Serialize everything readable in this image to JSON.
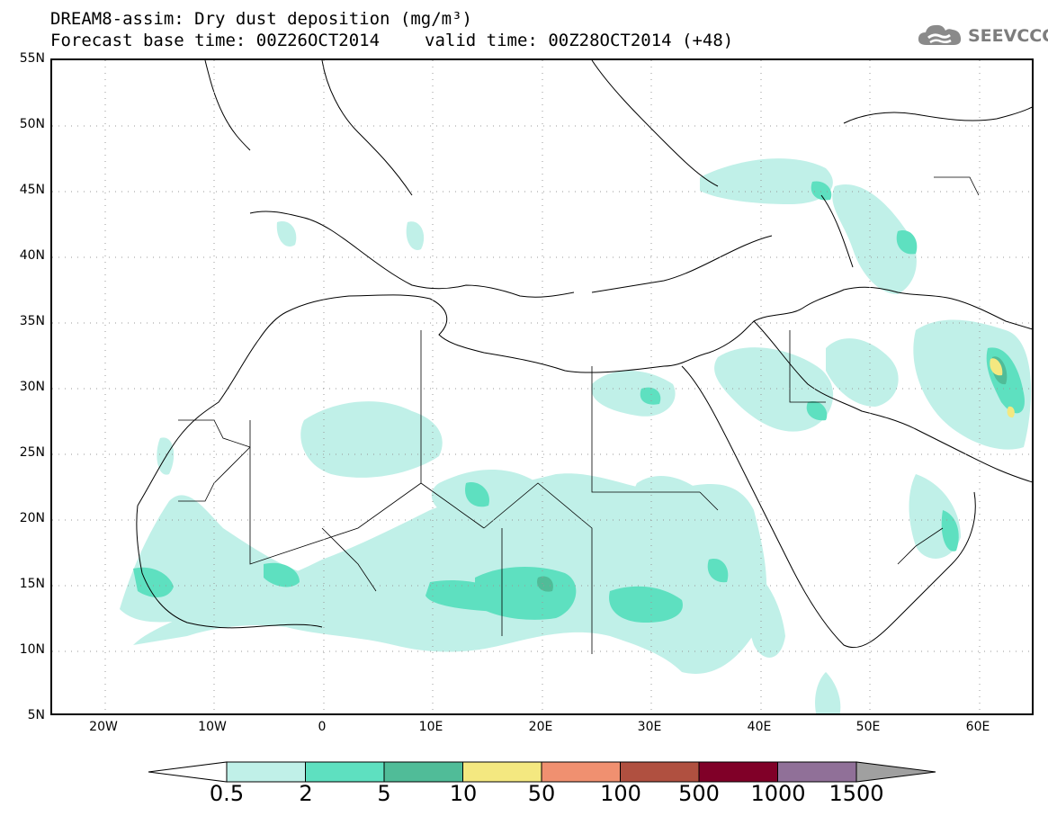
{
  "title": {
    "line1": "DREAM8-assim: Dry dust deposition (mg/m³)",
    "line2_base": "Forecast base time: 00Z26OCT2014",
    "line2_valid": "valid time: 00Z28OCT2014 (+48)"
  },
  "logo": {
    "text": "SEEVCCC",
    "icon": "cloud-icon"
  },
  "axes": {
    "x_labels": [
      "20W",
      "10W",
      "0",
      "10E",
      "20E",
      "30E",
      "40E",
      "50E",
      "60E"
    ],
    "y_labels": [
      "55N",
      "50N",
      "45N",
      "40N",
      "35N",
      "30N",
      "25N",
      "20N",
      "15N",
      "10N",
      "5N"
    ],
    "lon_range": [
      -25,
      65
    ],
    "lat_range": [
      5,
      55
    ],
    "grid": "dotted"
  },
  "colorbar": {
    "thresholds": [
      "0.5",
      "2",
      "5",
      "10",
      "50",
      "100",
      "500",
      "1000",
      "1500"
    ],
    "colors": [
      "#c0f0e8",
      "#5ee0c0",
      "#50bc98",
      "#f4e880",
      "#f09070",
      "#b05040",
      "#800028",
      "#907098",
      "#a0a0a0"
    ],
    "under_color": "#ffffff",
    "over_color": "#a0a0a0"
  },
  "chart_data": {
    "type": "heatmap",
    "title": "DREAM8-assim: Dry dust deposition (mg/m³)",
    "xlim": [
      -25,
      65
    ],
    "ylim": [
      5,
      55
    ],
    "units": "mg/m³",
    "levels": [
      0.5,
      2,
      5,
      10,
      50,
      100,
      500,
      1000,
      1500
    ],
    "hotspots": [
      {
        "lon": 61,
        "lat": 31,
        "level": 10
      },
      {
        "lon": 62,
        "lat": 27,
        "level": 10
      },
      {
        "lon": 16,
        "lat": 13.5,
        "level": 5
      },
      {
        "lon": 31,
        "lat": 13,
        "level": 2
      }
    ]
  }
}
